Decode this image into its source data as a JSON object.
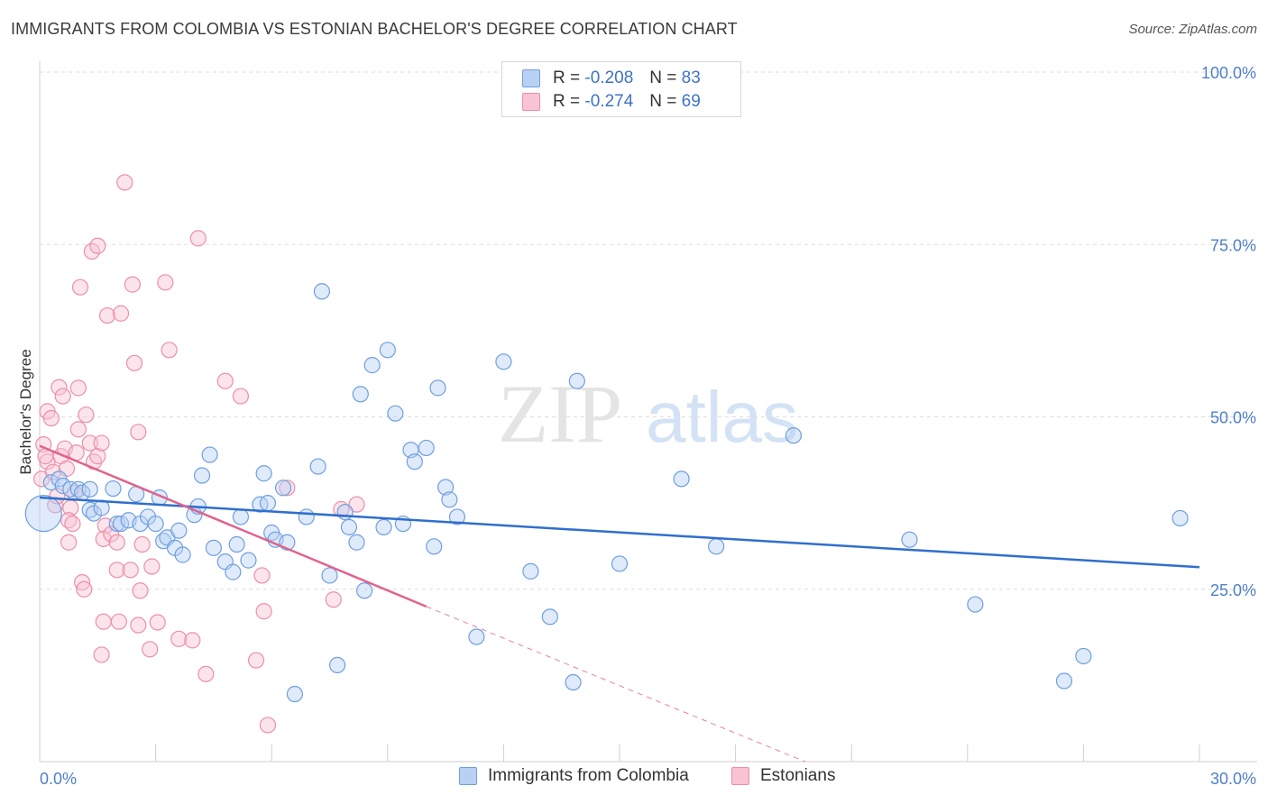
{
  "title": "IMMIGRANTS FROM COLOMBIA VS ESTONIAN BACHELOR'S DEGREE CORRELATION CHART",
  "source": "Source: ZipAtlas.com",
  "watermark": {
    "zip": "ZIP",
    "atlas": "atlas"
  },
  "colors": {
    "blue_fill": "#b8d1f3",
    "blue_stroke": "#6f9fe0",
    "blue_line": "#2f6fcd",
    "pink_fill": "#f8c3d3",
    "pink_stroke": "#ec8fab",
    "pink_line": "#e0628f",
    "grid": "#dddddd",
    "axis_text": "#4f7fc9"
  },
  "legend": {
    "rows": [
      {
        "r_label": "R =",
        "r_value": "-0.208",
        "n_label": "N =",
        "n_value": "83"
      },
      {
        "r_label": "R =",
        "r_value": "-0.274",
        "n_label": "N =",
        "n_value": "69"
      }
    ]
  },
  "bottom_legend": [
    "Immigrants from Colombia",
    "Estonians"
  ],
  "chart_data": {
    "type": "scatter",
    "title": "IMMIGRANTS FROM COLOMBIA VS ESTONIAN BACHELOR'S DEGREE CORRELATION CHART",
    "xlabel": "",
    "ylabel": "Bachelor's Degree",
    "xlim": [
      0,
      30
    ],
    "ylim": [
      0,
      100
    ],
    "x_tick_labels": [
      "0.0%",
      "30.0%"
    ],
    "y_ticks": [
      25,
      50,
      75,
      100
    ],
    "y_tick_labels": [
      "25.0%",
      "50.0%",
      "75.0%",
      "100.0%"
    ],
    "grid": true,
    "legend_position": "top-center",
    "series": [
      {
        "name": "Immigrants from Colombia",
        "R": -0.208,
        "N": 83,
        "trend": {
          "x": [
            0,
            30
          ],
          "y": [
            38.3,
            28.2
          ]
        },
        "points": [
          [
            0.1,
            36
          ],
          [
            0.3,
            40.5
          ],
          [
            0.5,
            41
          ],
          [
            0.6,
            40
          ],
          [
            0.8,
            39.5
          ],
          [
            1.0,
            39.5
          ],
          [
            1.1,
            39
          ],
          [
            1.3,
            39.5
          ],
          [
            1.3,
            36.5
          ],
          [
            1.4,
            36
          ],
          [
            1.6,
            36.8
          ],
          [
            1.9,
            39.6
          ],
          [
            2.0,
            34.5
          ],
          [
            2.1,
            34.5
          ],
          [
            2.3,
            35
          ],
          [
            2.5,
            38.8
          ],
          [
            2.6,
            34.5
          ],
          [
            2.8,
            35.5
          ],
          [
            3.0,
            34.5
          ],
          [
            3.1,
            38.3
          ],
          [
            3.2,
            32
          ],
          [
            3.3,
            32.5
          ],
          [
            3.5,
            31
          ],
          [
            3.6,
            33.5
          ],
          [
            3.7,
            30
          ],
          [
            4.0,
            35.8
          ],
          [
            4.1,
            37
          ],
          [
            4.2,
            41.5
          ],
          [
            4.4,
            44.5
          ],
          [
            4.5,
            31
          ],
          [
            4.8,
            29
          ],
          [
            5.0,
            27.5
          ],
          [
            5.1,
            31.5
          ],
          [
            5.2,
            35.5
          ],
          [
            5.4,
            29.2
          ],
          [
            5.7,
            37.3
          ],
          [
            5.8,
            41.8
          ],
          [
            5.9,
            37.5
          ],
          [
            6.0,
            33.2
          ],
          [
            6.1,
            32.2
          ],
          [
            6.3,
            39.7
          ],
          [
            6.4,
            31.8
          ],
          [
            6.6,
            9.8
          ],
          [
            6.9,
            35.5
          ],
          [
            7.2,
            42.8
          ],
          [
            7.3,
            68.2
          ],
          [
            7.5,
            27
          ],
          [
            7.7,
            14
          ],
          [
            7.9,
            36.2
          ],
          [
            8.0,
            34
          ],
          [
            8.2,
            31.8
          ],
          [
            8.3,
            53.3
          ],
          [
            8.4,
            24.8
          ],
          [
            8.6,
            57.5
          ],
          [
            8.9,
            34
          ],
          [
            9.0,
            59.7
          ],
          [
            9.2,
            50.5
          ],
          [
            9.4,
            34.5
          ],
          [
            9.6,
            45.2
          ],
          [
            9.7,
            43.5
          ],
          [
            10.0,
            45.5
          ],
          [
            10.2,
            31.2
          ],
          [
            10.3,
            54.2
          ],
          [
            10.5,
            39.8
          ],
          [
            10.6,
            38
          ],
          [
            10.8,
            35.5
          ],
          [
            11.3,
            18.1
          ],
          [
            12.0,
            58
          ],
          [
            12.7,
            27.6
          ],
          [
            13.2,
            21
          ],
          [
            13.8,
            11.5
          ],
          [
            13.9,
            55.2
          ],
          [
            15.0,
            28.7
          ],
          [
            16.6,
            41
          ],
          [
            17.5,
            31.2
          ],
          [
            19.5,
            47.3
          ],
          [
            22.5,
            32.2
          ],
          [
            24.2,
            22.8
          ],
          [
            26.5,
            11.7
          ],
          [
            27.0,
            15.3
          ],
          [
            29.5,
            35.3
          ]
        ]
      },
      {
        "name": "Estonians",
        "R": -0.274,
        "N": 69,
        "trend": {
          "x": [
            0,
            10
          ],
          "y": [
            45.8,
            22.5
          ]
        },
        "trend_extension": {
          "x": [
            10,
            19.8
          ],
          "y": [
            22.5,
            0
          ]
        },
        "points": [
          [
            0.05,
            41
          ],
          [
            0.1,
            46
          ],
          [
            0.2,
            43.5
          ],
          [
            0.2,
            50.8
          ],
          [
            0.3,
            49.8
          ],
          [
            0.35,
            42
          ],
          [
            0.4,
            37.2
          ],
          [
            0.45,
            38.5
          ],
          [
            0.5,
            54.3
          ],
          [
            0.55,
            44.3
          ],
          [
            0.6,
            53
          ],
          [
            0.65,
            45.4
          ],
          [
            0.7,
            42.5
          ],
          [
            0.8,
            36.8
          ],
          [
            0.75,
            35
          ],
          [
            0.75,
            31.8
          ],
          [
            0.85,
            34.5
          ],
          [
            0.95,
            44.8
          ],
          [
            1.0,
            48.2
          ],
          [
            1.0,
            54.2
          ],
          [
            1.05,
            68.8
          ],
          [
            1.1,
            26
          ],
          [
            1.15,
            25
          ],
          [
            1.2,
            50.3
          ],
          [
            1.3,
            46.2
          ],
          [
            1.35,
            74
          ],
          [
            1.4,
            43.5
          ],
          [
            1.5,
            74.8
          ],
          [
            1.5,
            44.3
          ],
          [
            1.6,
            15.5
          ],
          [
            1.6,
            46.2
          ],
          [
            1.65,
            20.3
          ],
          [
            1.7,
            34.2
          ],
          [
            1.65,
            32.3
          ],
          [
            1.75,
            64.7
          ],
          [
            1.85,
            33
          ],
          [
            2.0,
            31.8
          ],
          [
            2.0,
            27.8
          ],
          [
            2.05,
            20.3
          ],
          [
            2.1,
            65
          ],
          [
            2.2,
            84
          ],
          [
            2.35,
            27.8
          ],
          [
            2.4,
            69.2
          ],
          [
            2.45,
            57.8
          ],
          [
            2.55,
            47.8
          ],
          [
            2.55,
            19.8
          ],
          [
            2.6,
            24.8
          ],
          [
            2.65,
            31.5
          ],
          [
            2.85,
            16.3
          ],
          [
            2.9,
            28.3
          ],
          [
            3.05,
            20.2
          ],
          [
            3.25,
            69.5
          ],
          [
            3.35,
            59.7
          ],
          [
            3.6,
            17.8
          ],
          [
            3.95,
            17.6
          ],
          [
            4.1,
            75.9
          ],
          [
            4.3,
            12.7
          ],
          [
            4.8,
            55.2
          ],
          [
            5.2,
            53
          ],
          [
            5.6,
            14.7
          ],
          [
            5.75,
            27
          ],
          [
            5.8,
            21.8
          ],
          [
            5.9,
            5.3
          ],
          [
            6.4,
            39.7
          ],
          [
            7.6,
            23.5
          ],
          [
            7.8,
            36.6
          ],
          [
            8.2,
            37.3
          ],
          [
            0.15,
            44.3
          ],
          [
            0.9,
            39
          ]
        ]
      }
    ]
  }
}
